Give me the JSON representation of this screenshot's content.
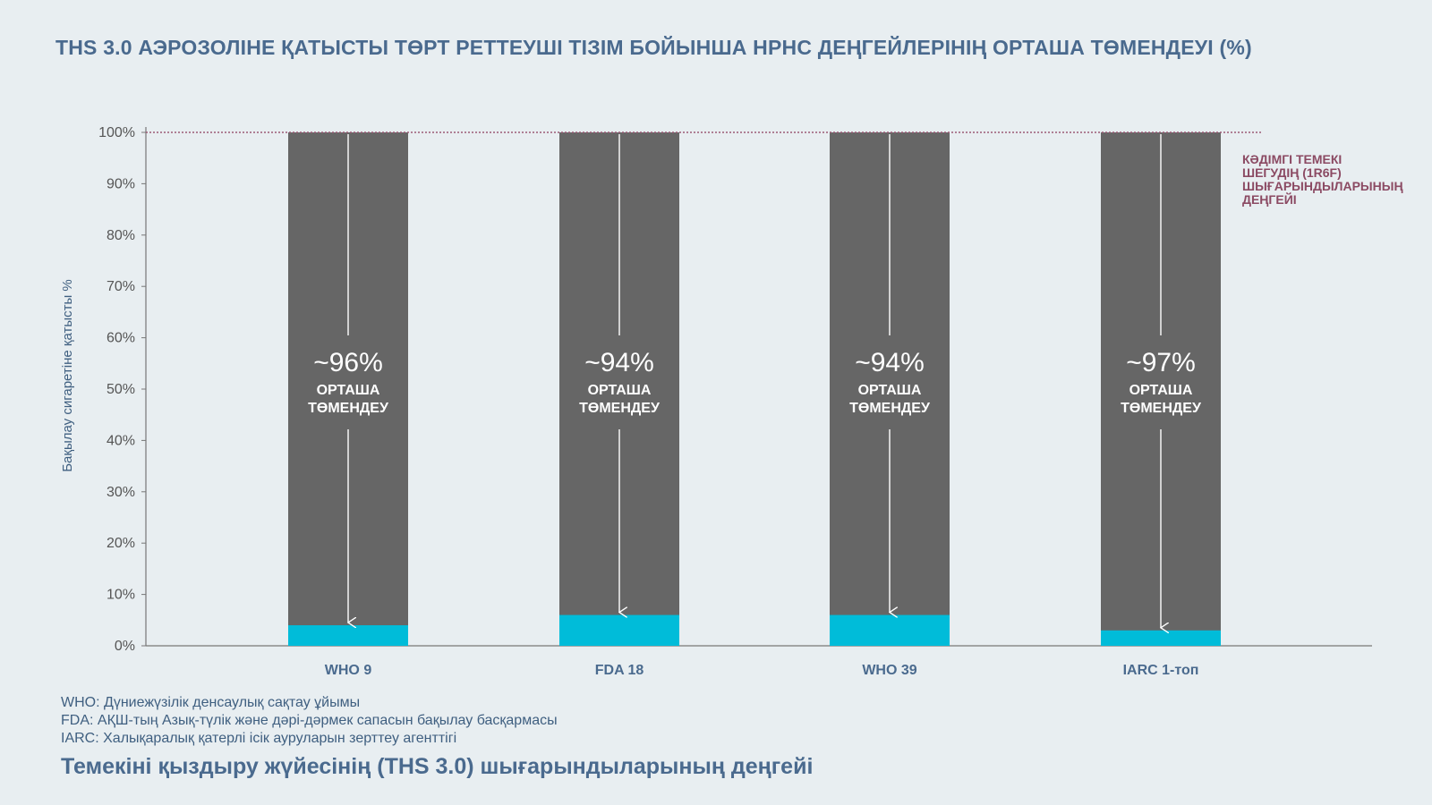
{
  "title": "THS 3.0 АЭРОЗОЛІНЕ ҚАТЫСТЫ ТӨРТ РЕТТЕУШІ ТІЗІМ БОЙЫНША HPHC ДЕҢГЕЙЛЕРІНІҢ ОРТАША ТӨМЕНДЕУІ (%)",
  "subtitle": "Темекіні қыздыру жүйесінің (THS 3.0) шығарындыларының деңгейі",
  "notes": [
    "WHO: Дүниежүзілік денсаулық сақтау ұйымы",
    "FDA: АҚШ-тың Азық-түлік және дәрі-дәрмек сапасын бақылау басқармасы",
    "IARC: Халықаралық қатерлі ісік ауруларын зерттеу агенттігі"
  ],
  "colors": {
    "bar_reference": "#666666",
    "bar_ths": "#00bcd9",
    "reference_line": "#9c5a75",
    "title": "#4a6a8e",
    "background": "#e8eef1"
  },
  "chart_data": {
    "type": "bar",
    "categories": [
      "WHO 9",
      "FDA 18",
      "WHO 39",
      "IARC 1-топ"
    ],
    "series": [
      {
        "values": [
          4,
          6,
          6,
          3
        ]
      },
      {
        "values": [
          100,
          100,
          100,
          100
        ]
      }
    ],
    "annotations": [
      {
        "value": "~96%",
        "label": [
          "ОРТАША",
          "ТӨМЕНДЕУ"
        ]
      },
      {
        "value": "~94%",
        "label": [
          "ОРТАША",
          "ТӨМЕНДЕУ"
        ]
      },
      {
        "value": "~94%",
        "label": [
          "ОРТАША",
          "ТӨМЕНДЕУ"
        ]
      },
      {
        "value": "~97%",
        "label": [
          "ОРТАША",
          "ТӨМЕНДЕУ"
        ]
      }
    ],
    "reference_line": {
      "value": 100,
      "label": [
        "КӘДІМГІ ТЕМЕКІ",
        "ШЕГУДІҢ (1R6F)",
        "ШЫҒАРЫНДЫЛАРЫНЫҢ",
        "ДЕҢГЕЙІ"
      ]
    },
    "ylabel": "Бақылау сигаретіне қатысты %",
    "xlabel": "",
    "ylim": [
      0,
      100
    ],
    "yticks": [
      "0%",
      "10%",
      "20%",
      "30%",
      "40%",
      "50%",
      "60%",
      "70%",
      "80%",
      "90%",
      "100%"
    ],
    "grid": false,
    "legend": "none"
  }
}
